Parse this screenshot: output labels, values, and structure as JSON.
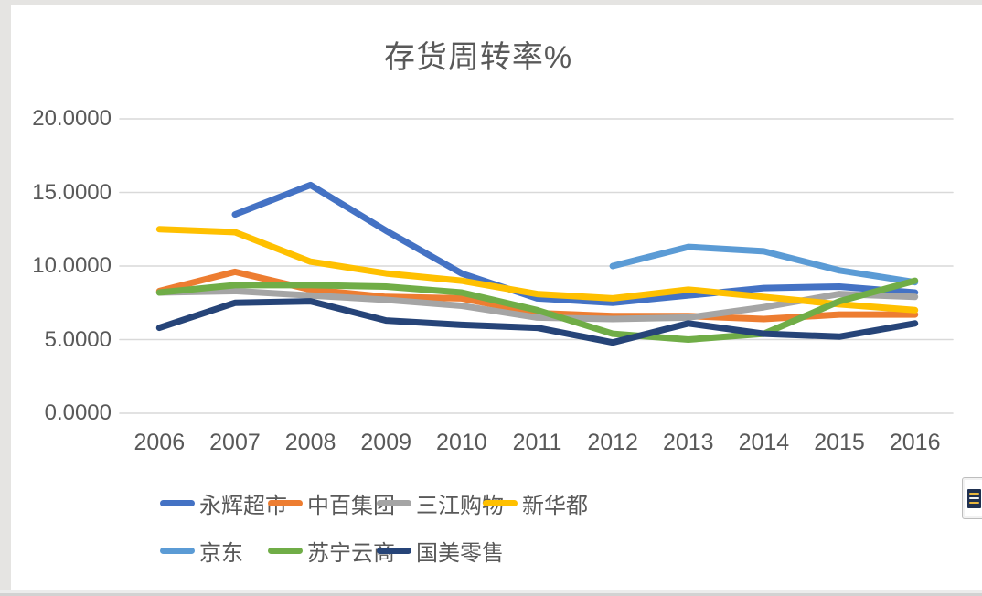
{
  "window": {
    "corner_button_name": "chart-elements-button"
  },
  "chart_data": {
    "type": "line",
    "title": "存货周转率%",
    "categories": [
      "2006",
      "2007",
      "2008",
      "2009",
      "2010",
      "2011",
      "2012",
      "2013",
      "2014",
      "2015",
      "2016"
    ],
    "y_ticks": [
      {
        "label": "20.0000",
        "value": 20
      },
      {
        "label": "15.0000",
        "value": 15
      },
      {
        "label": "10.0000",
        "value": 10
      },
      {
        "label": "5.0000",
        "value": 5
      },
      {
        "label": "0.0000",
        "value": 0
      }
    ],
    "ylim": [
      0,
      20
    ],
    "grid": true,
    "legend_position": "bottom",
    "text_color": "#595959",
    "gridline_color": "#d9d9d9",
    "series": [
      {
        "name": "永辉超市",
        "color": "#4472C4",
        "values": [
          null,
          13.5,
          15.5,
          12.4,
          9.5,
          7.8,
          7.5,
          8.0,
          8.5,
          8.6,
          8.2
        ]
      },
      {
        "name": "中百集团",
        "color": "#ED7D31",
        "values": [
          8.3,
          9.6,
          8.4,
          7.9,
          7.8,
          6.8,
          6.6,
          6.6,
          6.4,
          6.7,
          6.7
        ]
      },
      {
        "name": "三江购物",
        "color": "#A5A5A5",
        "values": [
          8.2,
          8.3,
          8.0,
          7.7,
          7.3,
          6.5,
          6.4,
          6.5,
          7.2,
          8.1,
          7.9
        ]
      },
      {
        "name": "新华都",
        "color": "#FFC000",
        "values": [
          12.5,
          12.3,
          10.3,
          9.5,
          9.0,
          8.1,
          7.8,
          8.4,
          7.9,
          7.4,
          7.0
        ]
      },
      {
        "name": "京东",
        "color": "#5B9BD5",
        "values": [
          null,
          null,
          null,
          null,
          null,
          null,
          10.0,
          11.3,
          11.0,
          9.7,
          8.9
        ]
      },
      {
        "name": "苏宁云商",
        "color": "#70AD47",
        "values": [
          8.2,
          8.7,
          8.7,
          8.6,
          8.2,
          7.0,
          5.4,
          5.0,
          5.4,
          7.6,
          9.0
        ]
      },
      {
        "name": "国美零售",
        "color": "#264478",
        "values": [
          5.8,
          7.5,
          7.6,
          6.3,
          6.0,
          5.8,
          4.8,
          6.1,
          5.4,
          5.2,
          6.1
        ]
      }
    ]
  }
}
